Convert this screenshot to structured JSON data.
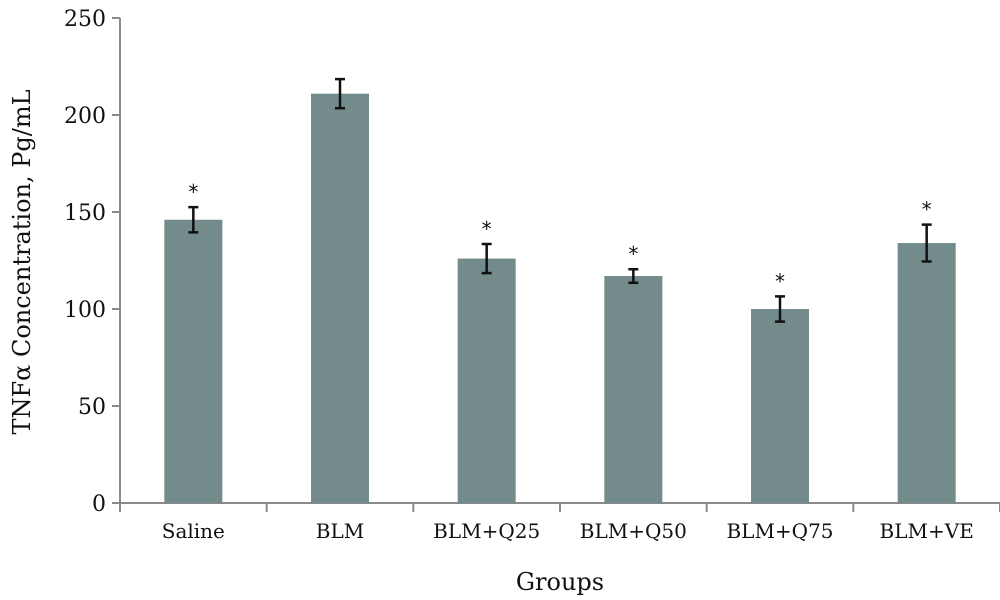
{
  "chart_data": {
    "type": "bar",
    "title": "",
    "xlabel": "Groups",
    "ylabel": "TNFα Concentration, Pg/mL",
    "ylim": [
      0,
      250
    ],
    "yticks": [
      0,
      50,
      100,
      150,
      200,
      250
    ],
    "grid": false,
    "categories": [
      "Saline",
      "BLM",
      "BLM+Q25",
      "BLM+Q50",
      "BLM+Q75",
      "BLM+VE"
    ],
    "values": [
      146,
      211,
      126,
      117,
      100,
      134
    ],
    "errors": [
      6.5,
      7.5,
      7.5,
      3.5,
      6.5,
      9.5
    ],
    "significance": [
      "*",
      "",
      "*",
      "*",
      "*",
      "*"
    ],
    "bar_color": "#738b8b"
  }
}
